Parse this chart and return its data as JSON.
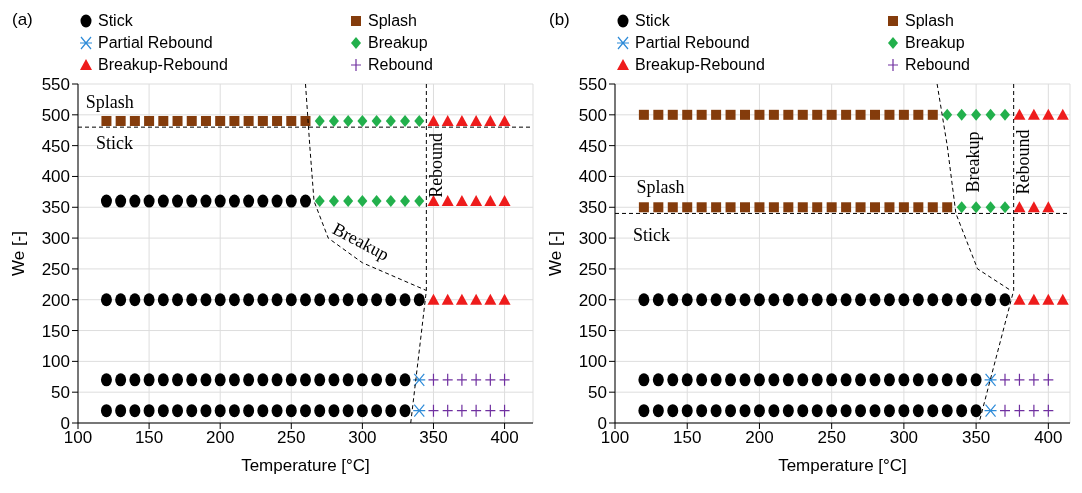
{
  "chart_data": [
    {
      "type": "scatter",
      "title": "(a)",
      "xlabel": "Temperature [°C]",
      "ylabel": "We [-]",
      "xlim": [
        100,
        420
      ],
      "ylim": [
        0,
        550
      ],
      "xticks": [
        100,
        150,
        200,
        250,
        300,
        350,
        400
      ],
      "yticks": [
        0,
        50,
        100,
        150,
        200,
        250,
        300,
        350,
        400,
        450,
        500,
        550
      ],
      "grid": true,
      "legend": "top",
      "series": [
        {
          "name": "Stick",
          "color": "#000000",
          "marker": "circle",
          "x": [
            120,
            130,
            140,
            150,
            160,
            170,
            180,
            190,
            200,
            210,
            220,
            230,
            240,
            250,
            260,
            120,
            130,
            140,
            150,
            160,
            170,
            180,
            190,
            200,
            210,
            220,
            230,
            240,
            250,
            260,
            270,
            280,
            290,
            300,
            310,
            320,
            330,
            340,
            120,
            130,
            140,
            150,
            160,
            170,
            180,
            190,
            200,
            210,
            220,
            230,
            240,
            250,
            260,
            270,
            280,
            290,
            300,
            310,
            320,
            330,
            120,
            130,
            140,
            150,
            160,
            170,
            180,
            190,
            200,
            210,
            220,
            230,
            240,
            250,
            260,
            270,
            280,
            290,
            300,
            310,
            320,
            330
          ],
          "values": [
            360,
            360,
            360,
            360,
            360,
            360,
            360,
            360,
            360,
            360,
            360,
            360,
            360,
            360,
            360,
            200,
            200,
            200,
            200,
            200,
            200,
            200,
            200,
            200,
            200,
            200,
            200,
            200,
            200,
            200,
            200,
            200,
            200,
            200,
            200,
            200,
            200,
            200,
            70,
            70,
            70,
            70,
            70,
            70,
            70,
            70,
            70,
            70,
            70,
            70,
            70,
            70,
            70,
            70,
            70,
            70,
            70,
            70,
            70,
            70,
            20,
            20,
            20,
            20,
            20,
            20,
            20,
            20,
            20,
            20,
            20,
            20,
            20,
            20,
            20,
            20,
            20,
            20,
            20,
            20,
            20,
            20
          ]
        },
        {
          "name": "Splash",
          "color": "#843c0c",
          "marker": "square",
          "x": [
            120,
            130,
            140,
            150,
            160,
            170,
            180,
            190,
            200,
            210,
            220,
            230,
            240,
            250,
            260
          ],
          "values": [
            490,
            490,
            490,
            490,
            490,
            490,
            490,
            490,
            490,
            490,
            490,
            490,
            490,
            490,
            490
          ]
        },
        {
          "name": "Partial Rebound",
          "color": "#2e8bd8",
          "marker": "cross",
          "x": [
            340,
            340
          ],
          "values": [
            70,
            20
          ]
        },
        {
          "name": "Breakup",
          "color": "#22b04c",
          "marker": "diamond",
          "x": [
            270,
            280,
            290,
            300,
            310,
            320,
            330,
            340,
            270,
            280,
            290,
            300,
            310,
            320,
            330,
            340
          ],
          "values": [
            490,
            490,
            490,
            490,
            490,
            490,
            490,
            490,
            360,
            360,
            360,
            360,
            360,
            360,
            360,
            360
          ]
        },
        {
          "name": "Breakup-Rebound",
          "color": "#ee1c1c",
          "marker": "triangle",
          "x": [
            350,
            360,
            370,
            380,
            390,
            400,
            350,
            360,
            370,
            380,
            390,
            400,
            350,
            360,
            370,
            380,
            390,
            400
          ],
          "values": [
            490,
            490,
            490,
            490,
            490,
            490,
            360,
            360,
            360,
            360,
            360,
            360,
            200,
            200,
            200,
            200,
            200,
            200
          ]
        },
        {
          "name": "Rebound",
          "color": "#7030a0",
          "x": [
            350,
            360,
            370,
            380,
            390,
            400,
            350,
            360,
            370,
            380,
            390,
            400
          ],
          "values": [
            70,
            70,
            70,
            70,
            70,
            70,
            20,
            20,
            20,
            20,
            20,
            20
          ]
        },
        {
          "type": "line",
          "color": "#000000",
          "marker": "none",
          "line_style": "dashed",
          "x": [
            260,
            263,
            266,
            276,
            300,
            320,
            345
          ],
          "values": [
            550,
            450,
            360,
            300,
            260,
            240,
            215
          ]
        },
        {
          "type": "line",
          "color": "#000000",
          "marker": "none",
          "line_style": "dashed",
          "x": [
            345,
            345,
            334
          ],
          "values": [
            550,
            215,
            0
          ]
        }
      ],
      "ref_lines": [
        {
          "axis": "y",
          "value": 480,
          "color": "#000000",
          "line_style": "dashed"
        }
      ],
      "annotations": [
        "Splash",
        "Stick",
        "Breakup",
        "Rebound"
      ]
    },
    {
      "type": "scatter",
      "title": "(b)",
      "xlabel": "Temperature [°C]",
      "ylabel": "We [-]",
      "xlim": [
        100,
        415
      ],
      "ylim": [
        0,
        550
      ],
      "xticks": [
        100,
        150,
        200,
        250,
        300,
        350,
        400
      ],
      "yticks": [
        0,
        50,
        100,
        150,
        200,
        250,
        300,
        350,
        400,
        450,
        500,
        550
      ],
      "grid": true,
      "legend": "top",
      "series": [
        {
          "name": "Stick",
          "color": "#000000",
          "marker": "circle",
          "x": [
            120,
            130,
            140,
            150,
            160,
            170,
            180,
            190,
            200,
            210,
            220,
            230,
            240,
            250,
            260,
            270,
            280,
            290,
            300,
            310,
            320,
            330,
            340,
            350,
            360,
            370,
            120,
            130,
            140,
            150,
            160,
            170,
            180,
            190,
            200,
            210,
            220,
            230,
            240,
            250,
            260,
            270,
            280,
            290,
            300,
            310,
            320,
            330,
            340,
            350,
            120,
            130,
            140,
            150,
            160,
            170,
            180,
            190,
            200,
            210,
            220,
            230,
            240,
            250,
            260,
            270,
            280,
            290,
            300,
            310,
            320,
            330,
            340,
            350
          ],
          "values": [
            200,
            200,
            200,
            200,
            200,
            200,
            200,
            200,
            200,
            200,
            200,
            200,
            200,
            200,
            200,
            200,
            200,
            200,
            200,
            200,
            200,
            200,
            200,
            200,
            200,
            200,
            70,
            70,
            70,
            70,
            70,
            70,
            70,
            70,
            70,
            70,
            70,
            70,
            70,
            70,
            70,
            70,
            70,
            70,
            70,
            70,
            70,
            70,
            70,
            70,
            20,
            20,
            20,
            20,
            20,
            20,
            20,
            20,
            20,
            20,
            20,
            20,
            20,
            20,
            20,
            20,
            20,
            20,
            20,
            20,
            20,
            20,
            20,
            20
          ]
        },
        {
          "name": "Splash",
          "color": "#843c0c",
          "marker": "square",
          "x": [
            120,
            130,
            140,
            150,
            160,
            170,
            180,
            190,
            200,
            210,
            220,
            230,
            240,
            250,
            260,
            270,
            280,
            290,
            300,
            310,
            320,
            120,
            130,
            140,
            150,
            160,
            170,
            180,
            190,
            200,
            210,
            220,
            230,
            240,
            250,
            260,
            270,
            280,
            290,
            300,
            310,
            320,
            330
          ],
          "values": [
            500,
            500,
            500,
            500,
            500,
            500,
            500,
            500,
            500,
            500,
            500,
            500,
            500,
            500,
            500,
            500,
            500,
            500,
            500,
            500,
            500,
            350,
            350,
            350,
            350,
            350,
            350,
            350,
            350,
            350,
            350,
            350,
            350,
            350,
            350,
            350,
            350,
            350,
            350,
            350,
            350,
            350,
            350
          ]
        },
        {
          "name": "Partial Rebound",
          "color": "#2e8bd8",
          "marker": "cross",
          "x": [
            360,
            360
          ],
          "values": [
            70,
            20
          ]
        },
        {
          "name": "Breakup",
          "color": "#22b04c",
          "marker": "diamond",
          "x": [
            330,
            340,
            350,
            360,
            370,
            340,
            350,
            360,
            370
          ],
          "values": [
            500,
            500,
            500,
            500,
            500,
            350,
            350,
            350,
            350
          ]
        },
        {
          "name": "Breakup-Rebound",
          "color": "#ee1c1c",
          "marker": "triangle",
          "x": [
            380,
            390,
            400,
            410,
            380,
            390,
            400,
            380,
            390,
            400,
            410
          ],
          "values": [
            500,
            500,
            500,
            500,
            350,
            350,
            350,
            200,
            200,
            200,
            200
          ]
        },
        {
          "name": "Rebound",
          "color": "#7030a0",
          "x": [
            370,
            380,
            390,
            400,
            370,
            380,
            390,
            400
          ],
          "values": [
            70,
            70,
            70,
            70,
            20,
            20,
            20,
            20
          ]
        },
        {
          "type": "line",
          "color": "#000000",
          "marker": "none",
          "line_style": "dashed",
          "x": [
            323,
            330,
            336,
            351,
            374
          ],
          "values": [
            550,
            450,
            340,
            250,
            215
          ]
        },
        {
          "type": "line",
          "color": "#000000",
          "marker": "none",
          "line_style": "dashed",
          "x": [
            376,
            376,
            352
          ],
          "values": [
            550,
            215,
            0
          ]
        }
      ],
      "ref_lines": [
        {
          "axis": "y",
          "value": 340,
          "color": "#000000",
          "line_style": "dashed"
        }
      ],
      "annotations": [
        "Splash",
        "Stick",
        "Breakup",
        "Rebound"
      ]
    }
  ]
}
